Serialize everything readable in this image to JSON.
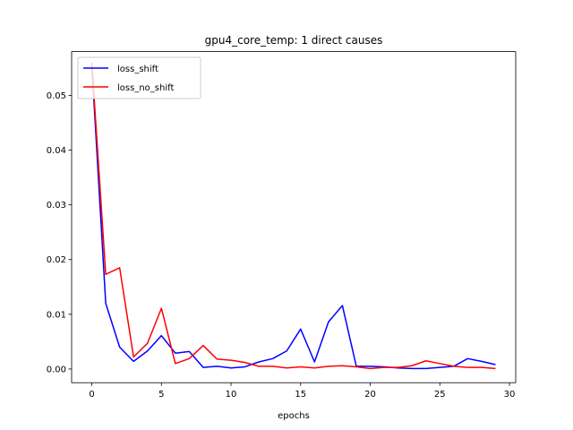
{
  "chart_data": {
    "type": "line",
    "title": "gpu4_core_temp: 1 direct causes",
    "xlabel": "epochs",
    "ylabel": "",
    "xlim": [
      -1.45,
      30.45
    ],
    "ylim": [
      -0.0025,
      0.058
    ],
    "xticks": [
      0,
      5,
      10,
      15,
      20,
      25,
      30
    ],
    "xtick_labels": [
      "0",
      "5",
      "10",
      "15",
      "20",
      "25",
      "30"
    ],
    "yticks": [
      0,
      0.01,
      0.02,
      0.03,
      0.04,
      0.05
    ],
    "ytick_labels": [
      "0.00",
      "0.01",
      "0.02",
      "0.03",
      "0.04",
      "0.05"
    ],
    "grid": false,
    "legend_position": "top-left",
    "x": [
      0,
      1,
      2,
      3,
      4,
      5,
      6,
      7,
      8,
      9,
      10,
      11,
      12,
      13,
      14,
      15,
      16,
      17,
      18,
      19,
      20,
      21,
      22,
      23,
      24,
      25,
      26,
      27,
      28,
      29
    ],
    "series": [
      {
        "name": "loss_shift",
        "color": "#0000ff",
        "values": [
          0.0555,
          0.012,
          0.004,
          0.0014,
          0.0033,
          0.0061,
          0.0029,
          0.0032,
          0.0003,
          0.0005,
          0.0002,
          0.0004,
          0.0013,
          0.0019,
          0.0033,
          0.0073,
          0.0013,
          0.0086,
          0.0116,
          0.0005,
          0.0005,
          0.0004,
          0.0002,
          0.0001,
          0.0001,
          0.0003,
          0.0005,
          0.0019,
          0.0014,
          0.0008
        ]
      },
      {
        "name": "loss_no_shift",
        "color": "#ff0000",
        "values": [
          0.056,
          0.0173,
          0.0185,
          0.0022,
          0.0047,
          0.0111,
          0.001,
          0.0019,
          0.0043,
          0.0018,
          0.0016,
          0.0012,
          0.0005,
          0.0005,
          0.0002,
          0.0004,
          0.0002,
          0.0005,
          0.0006,
          0.0004,
          0.0001,
          0.0003,
          0.0003,
          0.0006,
          0.0015,
          0.001,
          0.0005,
          0.0003,
          0.0003,
          0.0001
        ]
      }
    ]
  }
}
